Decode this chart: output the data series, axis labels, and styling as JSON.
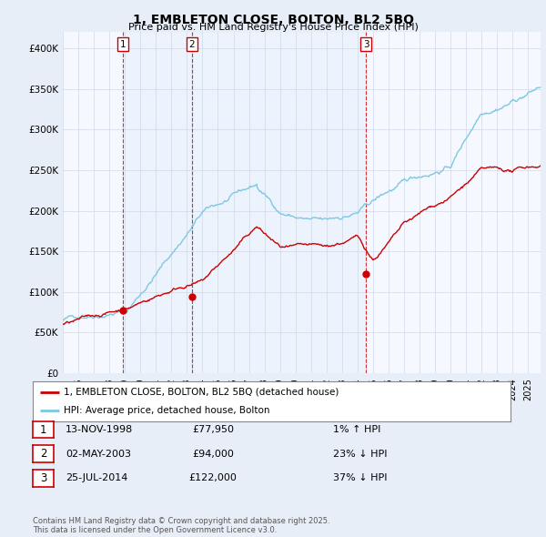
{
  "title": "1, EMBLETON CLOSE, BOLTON, BL2 5BQ",
  "subtitle": "Price paid vs. HM Land Registry's House Price Index (HPI)",
  "ylim": [
    0,
    420000
  ],
  "yticks": [
    0,
    50000,
    100000,
    150000,
    200000,
    250000,
    300000,
    350000,
    400000
  ],
  "ytick_labels": [
    "£0",
    "£50K",
    "£100K",
    "£150K",
    "£200K",
    "£250K",
    "£300K",
    "£350K",
    "£400K"
  ],
  "xlim_start": 1995.0,
  "xlim_end": 2025.8,
  "hpi_color": "#7ec8e3",
  "price_color": "#cc0000",
  "sale1_date": 1998.87,
  "sale1_price": 77950,
  "sale1_label": "1",
  "sale2_date": 2003.33,
  "sale2_price": 94000,
  "sale2_label": "2",
  "sale3_date": 2014.56,
  "sale3_price": 122000,
  "sale3_label": "3",
  "legend_line1": "1, EMBLETON CLOSE, BOLTON, BL2 5BQ (detached house)",
  "legend_line2": "HPI: Average price, detached house, Bolton",
  "table_entries": [
    {
      "num": "1",
      "date": "13-NOV-1998",
      "price": "£77,950",
      "pct": "1% ↑ HPI"
    },
    {
      "num": "2",
      "date": "02-MAY-2003",
      "price": "£94,000",
      "pct": "23% ↓ HPI"
    },
    {
      "num": "3",
      "date": "25-JUL-2014",
      "price": "£122,000",
      "pct": "37% ↓ HPI"
    }
  ],
  "footnote": "Contains HM Land Registry data © Crown copyright and database right 2025.\nThis data is licensed under the Open Government Licence v3.0.",
  "background_color": "#e8eef8",
  "plot_bg_color": "#f5f8ff"
}
